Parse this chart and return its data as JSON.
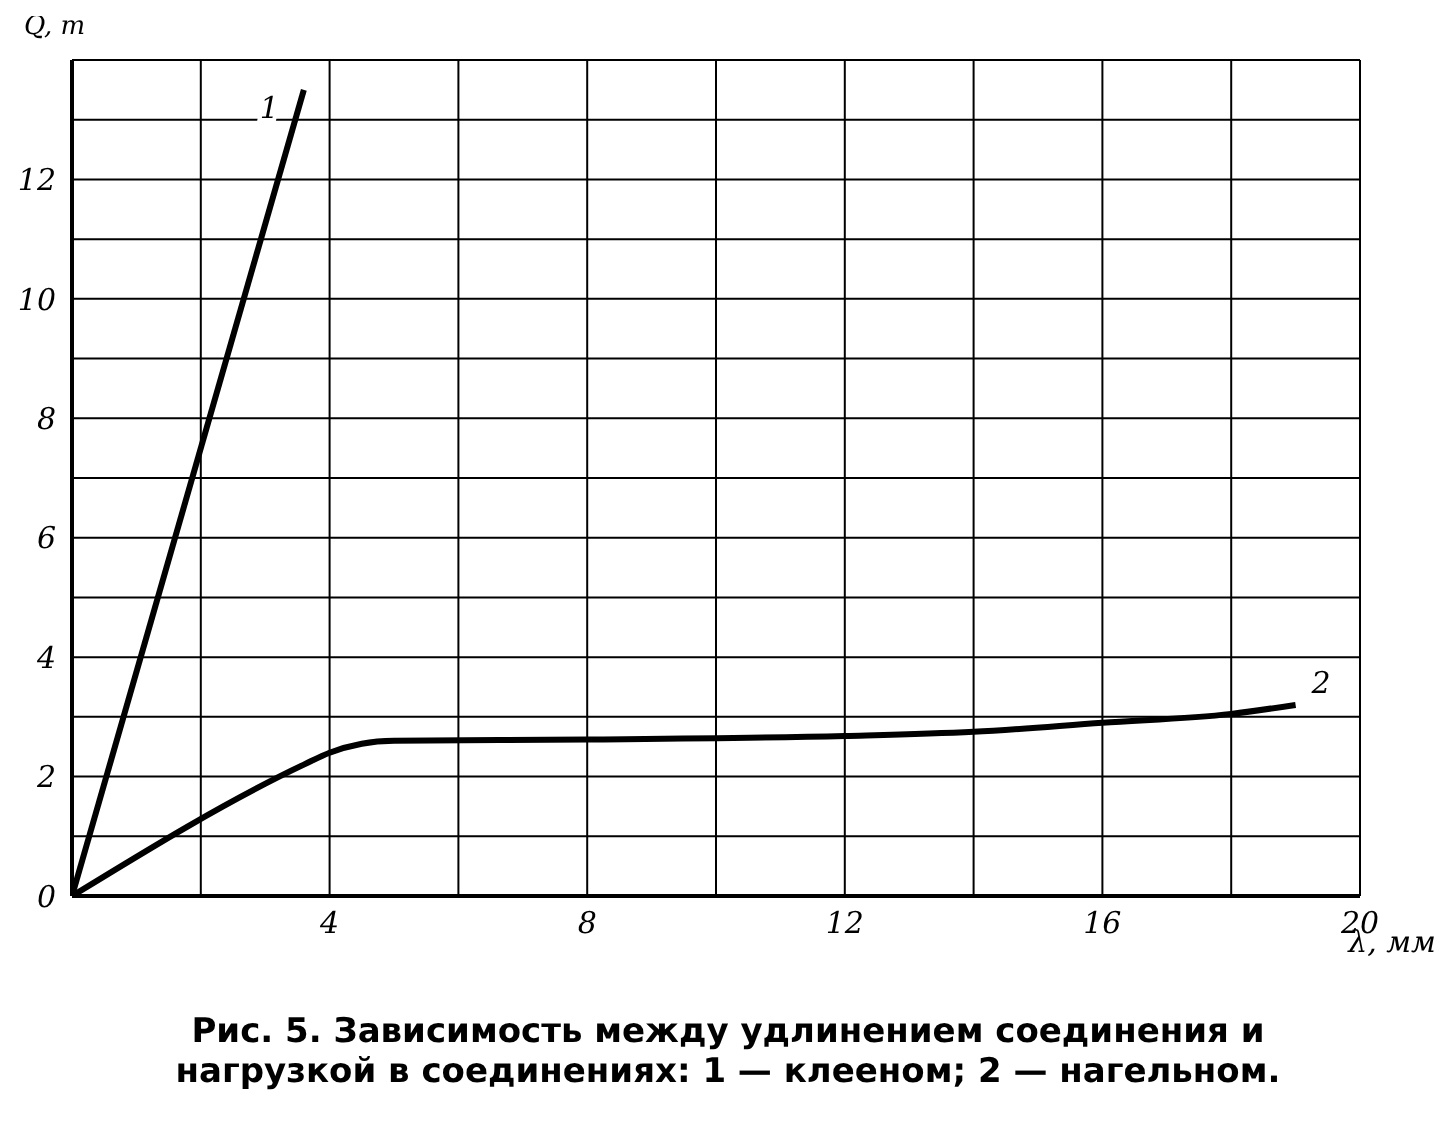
{
  "chart_data": {
    "type": "line",
    "title": "Рис. 5. Зависимость между удлинением соединения и нагрузкой в соединениях: 1 — клееном; 2 — нагельном.",
    "xlabel": "λ, мм",
    "ylabel": "Q, т",
    "xlim": [
      0,
      20
    ],
    "ylim": [
      0,
      14
    ],
    "xticks": [
      {
        "value": 2,
        "label": null
      },
      4,
      {
        "value": 6,
        "label": null
      },
      8,
      {
        "value": 10,
        "label": null
      },
      12,
      {
        "value": 14,
        "label": null
      },
      16,
      {
        "value": 18,
        "label": null
      },
      20
    ],
    "yticks": [
      0,
      {
        "value": 1,
        "label": null
      },
      2,
      {
        "value": 3,
        "label": null
      },
      4,
      {
        "value": 5,
        "label": null
      },
      6,
      {
        "value": 7,
        "label": null
      },
      8,
      {
        "value": 9,
        "label": null
      },
      10,
      {
        "value": 11,
        "label": null
      },
      12,
      {
        "value": 13,
        "label": null
      },
      {
        "value": 14,
        "label": null
      }
    ],
    "grid": true,
    "legend": false,
    "marker": "none",
    "line_style": "solid",
    "series": [
      {
        "name": "1",
        "color": "#000000",
        "x": [
          0,
          3.6
        ],
        "values": [
          0,
          13.5
        ]
      },
      {
        "name": "2",
        "color": "#000000",
        "x": [
          0,
          3.6,
          4,
          4.5,
          5,
          8,
          12,
          14,
          16,
          18,
          19
        ],
        "values": [
          0,
          2.2,
          2.4,
          2.55,
          2.6,
          2.62,
          2.68,
          2.75,
          2.9,
          3.05,
          3.2
        ]
      }
    ]
  }
}
